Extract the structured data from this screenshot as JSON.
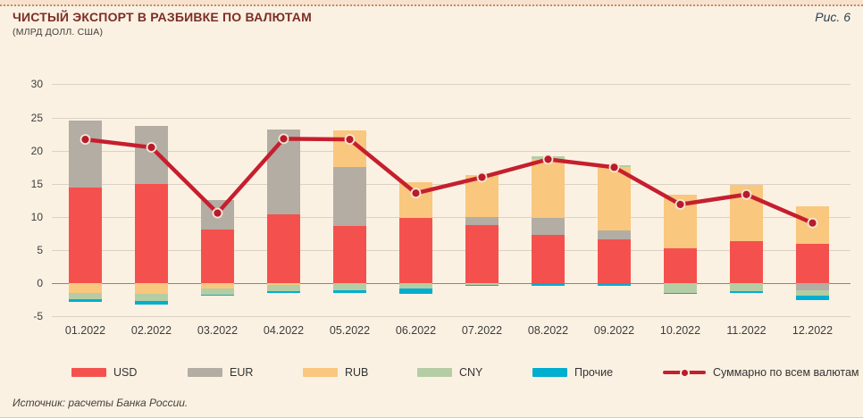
{
  "header": {
    "title": "ЧИСТЫЙ ЭКСПОРТ В РАЗБИВКЕ ПО ВАЛЮТАМ",
    "subtitle": "(МЛРД ДОЛЛ. США)",
    "figure_label": "Рис. 6"
  },
  "source": "Источник: расчеты Банка России.",
  "colors": {
    "background": "#fbf1e2",
    "usd": "#f4514e",
    "eur": "#b3ada4",
    "rub": "#f9c77e",
    "cny": "#b5cda4",
    "other": "#00aed0",
    "total_line": "#c51f2f",
    "title": "#7c2d26",
    "figure_label": "#2f4154"
  },
  "chart_data": {
    "type": "bar",
    "subtype": "stacked-bars-with-total-line",
    "title": "ЧИСТЫЙ ЭКСПОРТ В РАЗБИВКЕ ПО ВАЛЮТАМ",
    "subtitle": "(МЛРД ДОЛЛ. США)",
    "categories": [
      "01.2022",
      "02.2022",
      "03.2022",
      "04.2022",
      "05.2022",
      "06.2022",
      "07.2022",
      "08.2022",
      "09.2022",
      "10.2022",
      "11.2022",
      "12.2022"
    ],
    "series": [
      {
        "name": "USD",
        "palette": "usd",
        "values": [
          14.4,
          15.0,
          8.1,
          10.4,
          8.6,
          9.8,
          8.8,
          7.3,
          6.7,
          5.3,
          6.4,
          5.9
        ]
      },
      {
        "name": "EUR",
        "palette": "eur",
        "values": [
          10.1,
          8.7,
          4.4,
          12.8,
          9.0,
          0,
          1.2,
          2.5,
          1.3,
          0,
          0,
          -1.0
        ]
      },
      {
        "name": "RUB",
        "palette": "rub",
        "values": [
          -1.4,
          -1.6,
          -0.8,
          -0.2,
          5.5,
          5.4,
          6.3,
          9.0,
          9.5,
          8.1,
          8.5,
          5.7
        ]
      },
      {
        "name": "CNY",
        "palette": "cny",
        "values": [
          -1.0,
          -1.1,
          -0.9,
          -1.0,
          -1.1,
          -0.8,
          -0.2,
          0.3,
          0.3,
          -1.4,
          -1.2,
          -0.9
        ]
      },
      {
        "name": "Прочие",
        "palette": "other",
        "values": [
          -0.4,
          -0.5,
          -0.2,
          -0.2,
          -0.3,
          -0.8,
          -0.1,
          -0.4,
          -0.3,
          -0.1,
          -0.3,
          -0.6
        ]
      }
    ],
    "line_series": {
      "name": "Суммарно по всем валютам",
      "palette": "total_line",
      "values": [
        21.7,
        20.5,
        10.6,
        21.8,
        21.7,
        13.6,
        16.0,
        18.7,
        17.5,
        11.9,
        13.4,
        9.1
      ]
    },
    "ylim": [
      -5,
      30
    ],
    "yticks": [
      30,
      25,
      20,
      15,
      10,
      5,
      0,
      -5
    ],
    "grid": true,
    "legend_position": "bottom"
  }
}
